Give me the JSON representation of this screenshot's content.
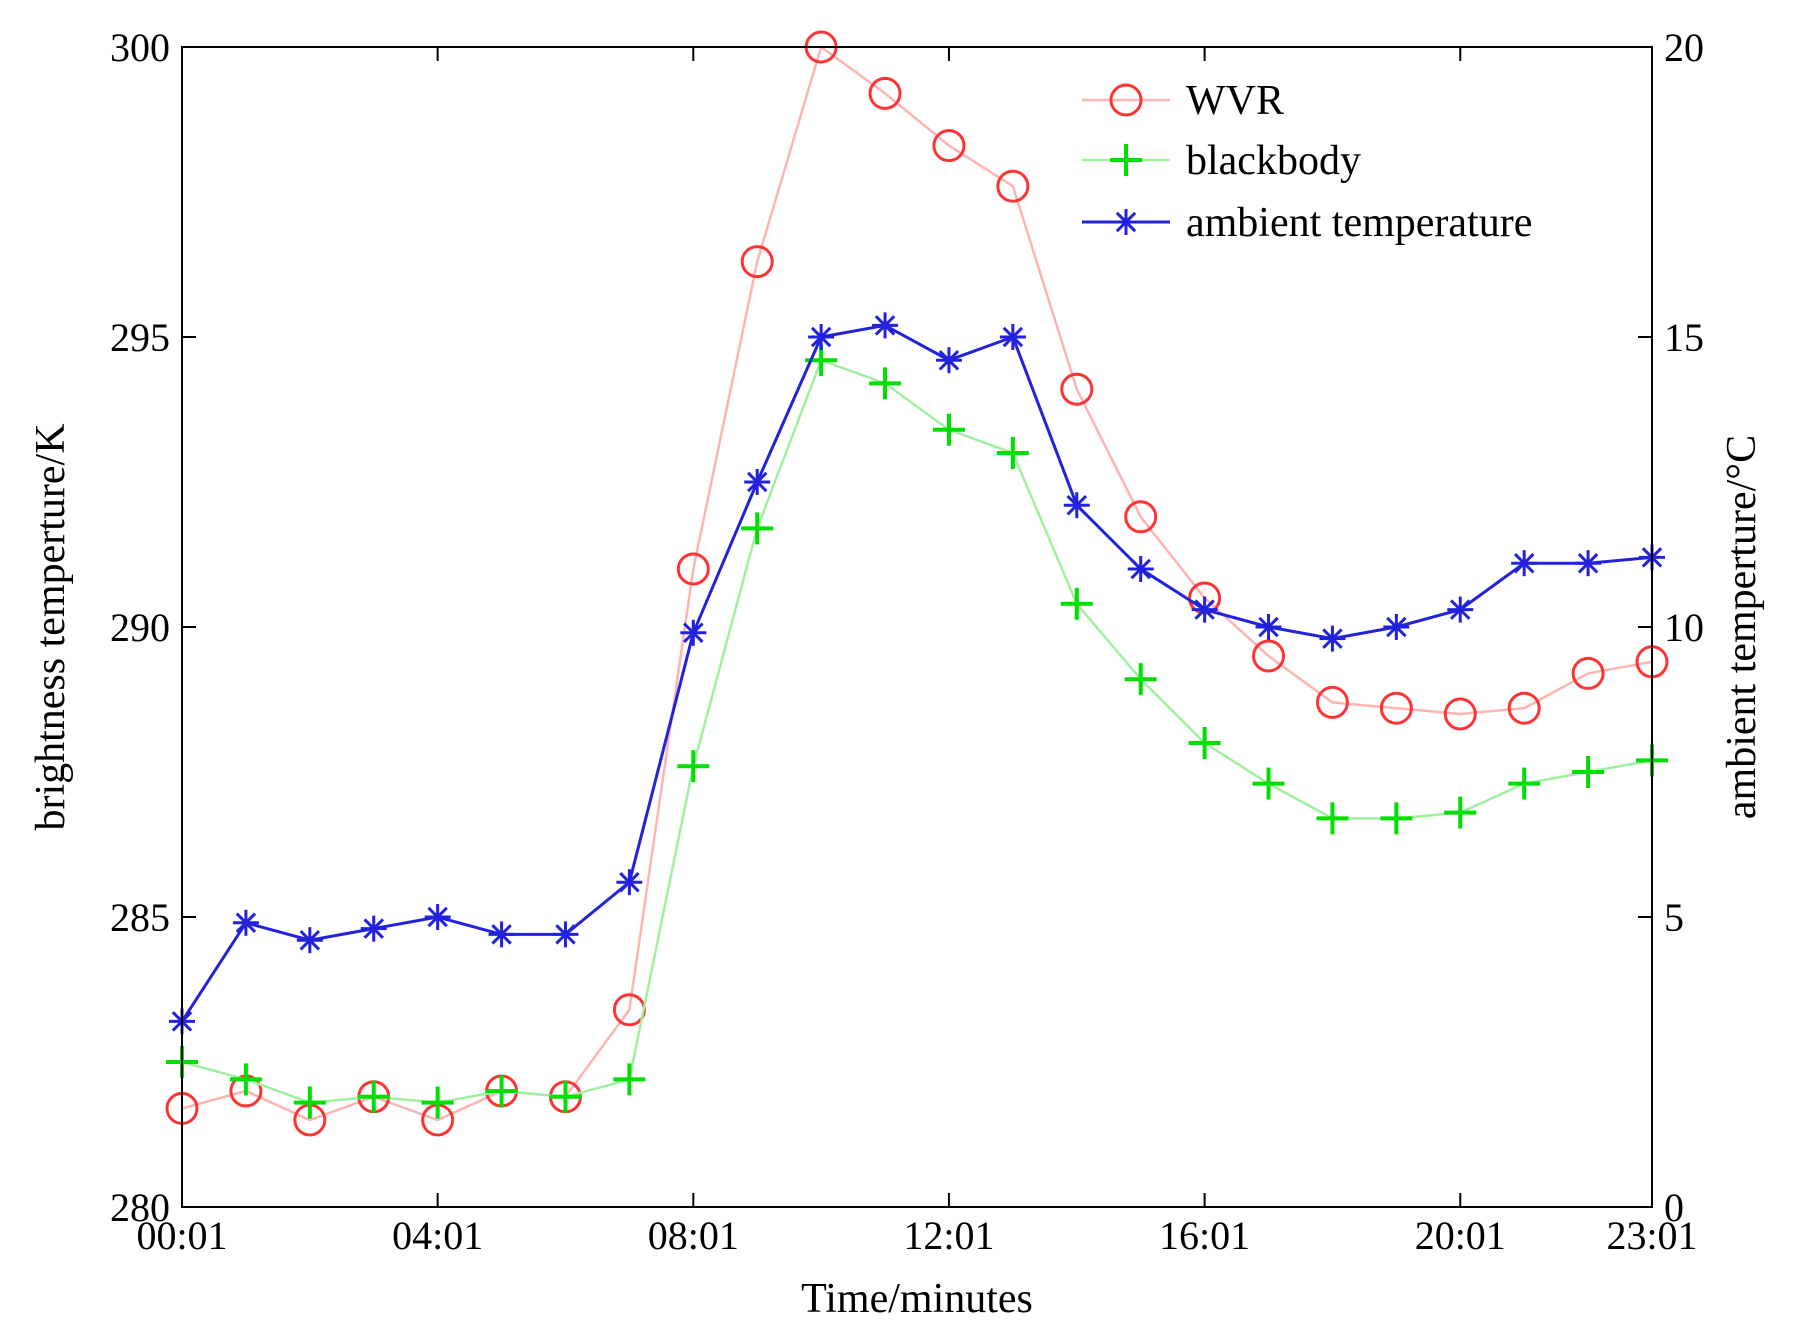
{
  "chart_data": {
    "type": "line",
    "xlabel": "Time/minutes",
    "ylabel": "brightness temperture/K",
    "y2label": "ambient temperture/°C",
    "x": [
      1,
      2,
      3,
      4,
      5,
      6,
      7,
      8,
      9,
      10,
      11,
      12,
      13,
      14,
      15,
      16,
      17,
      18,
      19,
      20,
      21,
      22,
      23,
      24
    ],
    "xlim": [
      1,
      24
    ],
    "xticks": [
      1,
      5,
      9,
      13,
      17,
      21,
      24
    ],
    "xtick_labels": [
      "00:01",
      "04:01",
      "08:01",
      "12:01",
      "16:01",
      "20:01",
      "23:01"
    ],
    "ylim": [
      280,
      300
    ],
    "yticks": [
      280,
      285,
      290,
      295,
      300
    ],
    "ytick_labels": [
      "280",
      "285",
      "290",
      "295",
      "300"
    ],
    "y2lim": [
      0,
      20
    ],
    "y2ticks": [
      0,
      5,
      10,
      15,
      20
    ],
    "y2tick_labels": [
      "0",
      "5",
      "10",
      "15",
      "20"
    ],
    "legend_position": "top-right",
    "grid": false,
    "series": [
      {
        "name": "WVR",
        "axis": "left",
        "marker": "circle",
        "color": "#ff3333",
        "line_color": "#ffb3b3",
        "values": [
          281.7,
          282.0,
          281.5,
          281.9,
          281.5,
          282.0,
          281.9,
          283.4,
          291.0,
          296.3,
          300.0,
          299.2,
          298.3,
          297.6,
          294.1,
          291.9,
          290.5,
          289.5,
          288.7,
          288.6,
          288.5,
          288.6,
          289.2,
          289.4
        ]
      },
      {
        "name": "blackbody",
        "axis": "left",
        "marker": "plus",
        "color": "#00e000",
        "line_color": "#a0f0a0",
        "values": [
          282.5,
          282.2,
          281.8,
          281.9,
          281.8,
          282.0,
          281.9,
          282.2,
          287.6,
          291.7,
          294.6,
          294.2,
          293.4,
          293.0,
          290.4,
          289.1,
          288.0,
          287.3,
          286.7,
          286.7,
          286.8,
          287.3,
          287.5,
          287.7
        ]
      },
      {
        "name": "ambient temperature",
        "axis": "right",
        "marker": "asterisk",
        "color": "#2222dd",
        "line_color": "#2222dd",
        "values": [
          3.2,
          4.9,
          4.6,
          4.8,
          5.0,
          4.7,
          4.7,
          5.6,
          9.9,
          12.5,
          15.0,
          15.2,
          14.6,
          15.0,
          12.1,
          11.0,
          10.3,
          10.0,
          9.8,
          10.0,
          10.3,
          11.1,
          11.1,
          11.2
        ]
      }
    ]
  }
}
